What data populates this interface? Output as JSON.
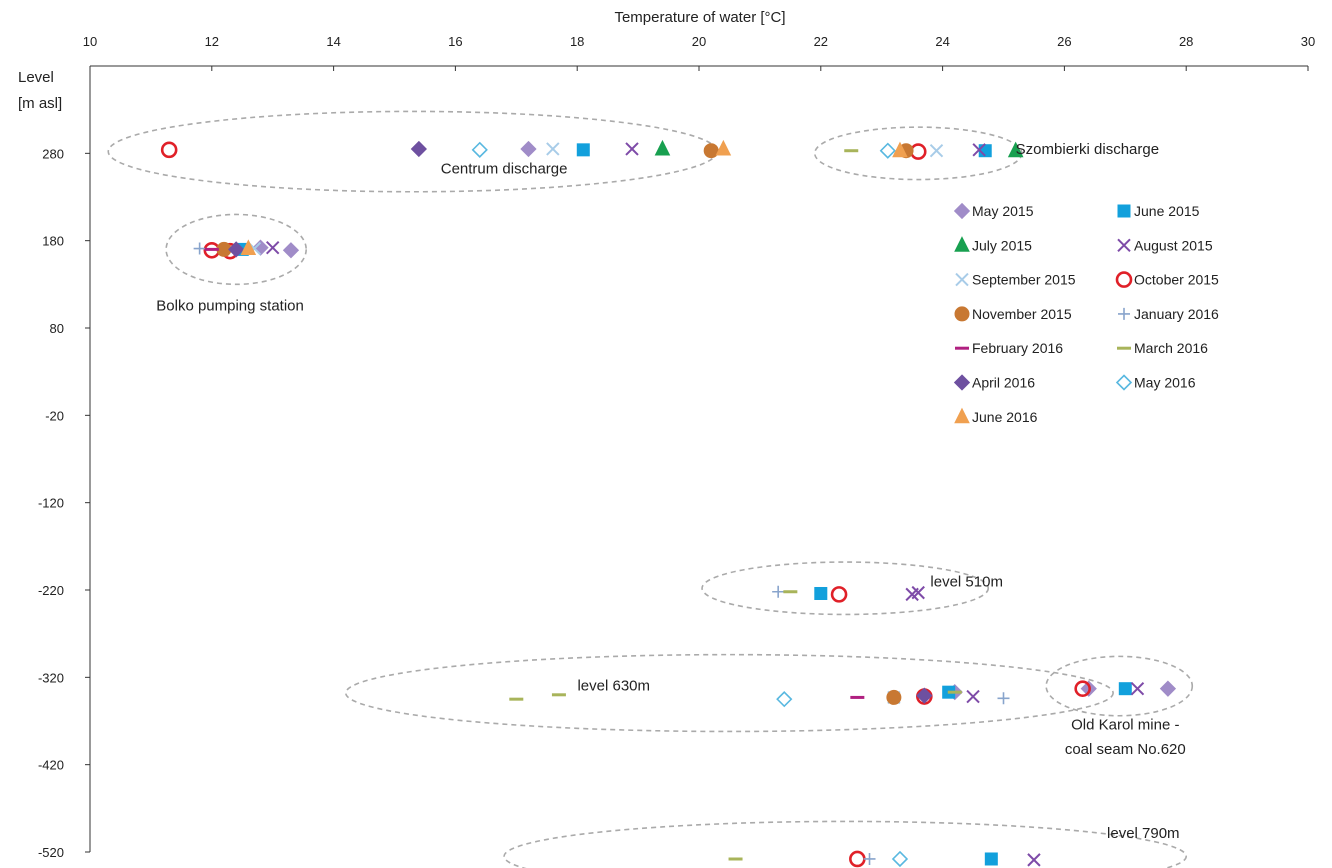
{
  "chart_data": {
    "type": "scatter",
    "title": "",
    "xlabel": "Temperature of water [°C]",
    "ylabel": "Level [m asl]",
    "ylabel_lines": [
      "Level",
      "[m asl]"
    ],
    "xlim": [
      10,
      30
    ],
    "ylim": [
      -520,
      380
    ],
    "x_ticks": [
      10,
      12,
      14,
      16,
      18,
      20,
      22,
      24,
      26,
      28,
      30
    ],
    "y_ticks": [
      280,
      180,
      80,
      -20,
      -120,
      -220,
      -320,
      -420,
      -520
    ],
    "x_axis_position": "top",
    "grid": false,
    "legend": {
      "position": "right",
      "columns": 2
    },
    "series": [
      {
        "name": "May 2015",
        "marker": "diamond",
        "color": "#a08cc8",
        "filled": true,
        "points": [
          [
            17.2,
            285
          ],
          [
            12.8,
            172
          ],
          [
            13.3,
            169
          ],
          [
            24.2,
            -337
          ],
          [
            26.4,
            -333
          ],
          [
            27.7,
            -333
          ]
        ]
      },
      {
        "name": "June 2015",
        "marker": "square",
        "color": "#12a0dc",
        "filled": true,
        "points": [
          [
            18.1,
            284
          ],
          [
            24.7,
            283
          ],
          [
            12.5,
            170
          ],
          [
            22.0,
            -224
          ],
          [
            24.1,
            -337
          ],
          [
            27.0,
            -333
          ],
          [
            24.8,
            -528
          ]
        ]
      },
      {
        "name": "July 2015",
        "marker": "triangle",
        "color": "#18a050",
        "filled": true,
        "points": [
          [
            19.4,
            285
          ],
          [
            25.2,
            283
          ]
        ]
      },
      {
        "name": "August 2015",
        "marker": "x",
        "color": "#7e4ba8",
        "filled": false,
        "points": [
          [
            18.9,
            285
          ],
          [
            24.6,
            284
          ],
          [
            13.0,
            172
          ],
          [
            23.6,
            -223
          ],
          [
            23.5,
            -225
          ],
          [
            24.5,
            -342
          ],
          [
            27.2,
            -333
          ],
          [
            25.5,
            -529
          ]
        ]
      },
      {
        "name": "September 2015",
        "marker": "x",
        "color": "#a8cce8",
        "filled": false,
        "points": [
          [
            17.6,
            285
          ],
          [
            23.9,
            283
          ],
          [
            12.7,
            171
          ],
          [
            23.2,
            -343
          ]
        ]
      },
      {
        "name": "October 2015",
        "marker": "circle",
        "color": "#e02028",
        "filled": false,
        "points": [
          [
            11.3,
            284
          ],
          [
            23.6,
            282
          ],
          [
            12.0,
            169
          ],
          [
            12.3,
            168
          ],
          [
            22.3,
            -225
          ],
          [
            23.7,
            -342
          ],
          [
            26.3,
            -333
          ],
          [
            22.6,
            -528
          ]
        ]
      },
      {
        "name": "November 2015",
        "marker": "circle",
        "color": "#c87832",
        "filled": true,
        "points": [
          [
            20.2,
            283
          ],
          [
            23.4,
            283
          ],
          [
            12.2,
            170
          ],
          [
            23.2,
            -343
          ]
        ]
      },
      {
        "name": "January 2016",
        "marker": "plus",
        "color": "#88a4cc",
        "filled": false,
        "points": [
          [
            11.8,
            171
          ],
          [
            21.3,
            -222
          ],
          [
            25.0,
            -344
          ],
          [
            22.8,
            -528
          ]
        ]
      },
      {
        "name": "February 2016",
        "marker": "dash",
        "color": "#b02080",
        "filled": false,
        "points": [
          [
            12.0,
            170
          ],
          [
            22.6,
            -343
          ]
        ]
      },
      {
        "name": "March 2016",
        "marker": "dash",
        "color": "#a8b45a",
        "filled": false,
        "points": [
          [
            22.5,
            283
          ],
          [
            21.5,
            -222
          ],
          [
            17.0,
            -345
          ],
          [
            17.7,
            -340
          ],
          [
            24.2,
            -337
          ],
          [
            20.6,
            -528
          ]
        ]
      },
      {
        "name": "April 2016",
        "marker": "diamond",
        "color": "#6e50a0",
        "filled": true,
        "points": [
          [
            15.4,
            285
          ],
          [
            12.4,
            170
          ],
          [
            23.7,
            -341
          ]
        ]
      },
      {
        "name": "May 2016",
        "marker": "diamond",
        "color": "#58b8e0",
        "filled": false,
        "points": [
          [
            16.4,
            284
          ],
          [
            23.1,
            283
          ],
          [
            21.4,
            -345
          ],
          [
            23.3,
            -528
          ]
        ]
      },
      {
        "name": "June 2016",
        "marker": "triangle",
        "color": "#f0a050",
        "filled": true,
        "points": [
          [
            20.4,
            285
          ],
          [
            23.3,
            283
          ],
          [
            12.6,
            171
          ]
        ]
      }
    ],
    "annotations": [
      {
        "text": "Centrum discharge",
        "x": 16.8,
        "y": 257,
        "anchor": "middle"
      },
      {
        "text": "Szombierki discharge",
        "x": 25.2,
        "y": 279,
        "anchor": "start"
      },
      {
        "text": "Bolko pumping station",
        "x": 12.3,
        "y": 100,
        "anchor": "middle"
      },
      {
        "text": "level 510m",
        "x": 23.8,
        "y": -216,
        "anchor": "start"
      },
      {
        "text": "level 630m",
        "x": 18.6,
        "y": -335,
        "anchor": "middle"
      },
      {
        "text": "Old Karol mine -",
        "x": 27.0,
        "y": -380,
        "anchor": "middle"
      },
      {
        "text": "coal seam No.620",
        "x": 27.0,
        "y": -408,
        "anchor": "middle"
      },
      {
        "text": "level 790m",
        "x": 26.7,
        "y": -504,
        "anchor": "start"
      }
    ],
    "groups": [
      {
        "cx": 15.3,
        "cy": 282,
        "rx": 5.0,
        "ry": 46
      },
      {
        "cx": 23.6,
        "cy": 280,
        "rx": 1.7,
        "ry": 30
      },
      {
        "cx": 12.4,
        "cy": 170,
        "rx": 1.15,
        "ry": 40
      },
      {
        "cx": 22.4,
        "cy": -218,
        "rx": 2.35,
        "ry": 30
      },
      {
        "cx": 20.5,
        "cy": -338,
        "rx": 6.3,
        "ry": 44
      },
      {
        "cx": 26.9,
        "cy": -330,
        "rx": 1.2,
        "ry": 34
      },
      {
        "cx": 22.4,
        "cy": -525,
        "rx": 5.6,
        "ry": 40
      }
    ]
  }
}
